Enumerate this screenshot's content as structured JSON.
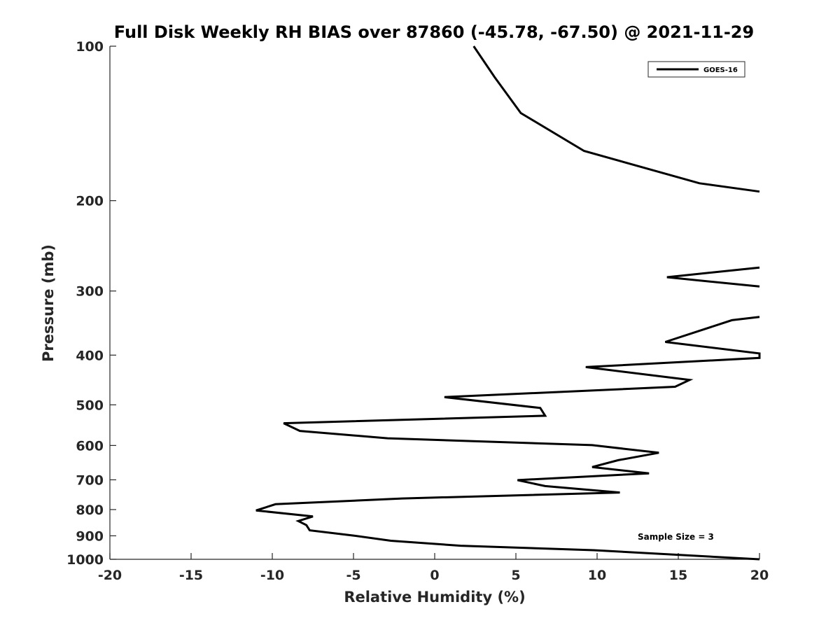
{
  "chart_data": {
    "type": "line",
    "title": "Full Disk Weekly RH BIAS over 87860 (-45.78, -67.50) @ 2021-11-29",
    "xlabel": "Relative Humidity (%)",
    "ylabel": "Pressure (mb)",
    "xlim": [
      -20,
      20
    ],
    "ylim": [
      100,
      1000
    ],
    "y_scale": "log",
    "y_reversed": true,
    "x_ticks": [
      -20,
      -15,
      -10,
      -5,
      0,
      5,
      10,
      15,
      20
    ],
    "x_tick_labels": [
      "-20",
      "-15",
      "-10",
      "-5",
      "0",
      "5",
      "10",
      "15",
      "20"
    ],
    "y_ticks": [
      100,
      200,
      300,
      400,
      500,
      600,
      700,
      800,
      900,
      1000
    ],
    "y_tick_labels": [
      "100",
      "200",
      "300",
      "400",
      "500",
      "600",
      "700",
      "800",
      "900",
      "1000"
    ],
    "grid": false,
    "legend": {
      "position": "top-right",
      "entries": [
        "GOES-16"
      ]
    },
    "annotation": "Sample Size = 3",
    "series": [
      {
        "name": "GOES-16",
        "color": "#000000",
        "segments": [
          [
            {
              "x": 2.4,
              "p": 100
            },
            {
              "x": 3.7,
              "p": 115
            },
            {
              "x": 5.3,
              "p": 135
            },
            {
              "x": 9.2,
              "p": 160
            },
            {
              "x": 16.3,
              "p": 185
            },
            {
              "x": 20.0,
              "p": 192
            }
          ],
          [
            {
              "x": 20.0,
              "p": 270
            },
            {
              "x": 14.3,
              "p": 282
            },
            {
              "x": 20.0,
              "p": 294
            }
          ],
          [
            {
              "x": 20.0,
              "p": 337
            },
            {
              "x": 18.3,
              "p": 342
            },
            {
              "x": 14.2,
              "p": 377
            },
            {
              "x": 20.0,
              "p": 397
            },
            {
              "x": 20.0,
              "p": 405
            },
            {
              "x": 9.3,
              "p": 422
            },
            {
              "x": 15.7,
              "p": 447
            },
            {
              "x": 14.8,
              "p": 461
            },
            {
              "x": 0.6,
              "p": 483
            },
            {
              "x": 6.5,
              "p": 507
            },
            {
              "x": 6.8,
              "p": 525
            },
            {
              "x": -9.3,
              "p": 543
            },
            {
              "x": -8.3,
              "p": 562
            },
            {
              "x": -2.9,
              "p": 581
            },
            {
              "x": 9.7,
              "p": 599
            },
            {
              "x": 13.8,
              "p": 620
            },
            {
              "x": 11.3,
              "p": 641
            },
            {
              "x": 9.7,
              "p": 661
            },
            {
              "x": 13.2,
              "p": 680
            },
            {
              "x": 5.1,
              "p": 701
            },
            {
              "x": 6.8,
              "p": 720
            },
            {
              "x": 11.4,
              "p": 741
            },
            {
              "x": -2.0,
              "p": 761
            },
            {
              "x": -9.8,
              "p": 781
            },
            {
              "x": -11.0,
              "p": 803
            },
            {
              "x": -7.5,
              "p": 825
            },
            {
              "x": -8.4,
              "p": 842
            },
            {
              "x": -7.9,
              "p": 858
            },
            {
              "x": -7.7,
              "p": 878
            },
            {
              "x": -5.0,
              "p": 899
            },
            {
              "x": -2.7,
              "p": 920
            },
            {
              "x": 1.6,
              "p": 941
            },
            {
              "x": 9.8,
              "p": 960
            },
            {
              "x": 20.0,
              "p": 1000
            }
          ]
        ]
      }
    ]
  }
}
